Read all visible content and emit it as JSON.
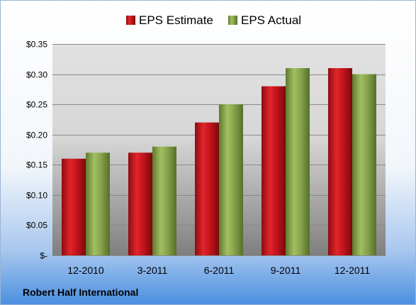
{
  "chart_data": {
    "type": "bar",
    "title": "",
    "xlabel": "",
    "ylabel": "",
    "categories": [
      "12-2010",
      "3-2011",
      "6-2011",
      "9-2011",
      "12-2011"
    ],
    "series": [
      {
        "name": "EPS Estimate",
        "values": [
          0.16,
          0.17,
          0.22,
          0.28,
          0.31
        ]
      },
      {
        "name": "EPS Actual",
        "values": [
          0.17,
          0.18,
          0.25,
          0.31,
          0.3
        ]
      }
    ],
    "ylim": [
      0,
      0.35
    ],
    "yticks": [
      0,
      0.05,
      0.1,
      0.15,
      0.2,
      0.25,
      0.3,
      0.35
    ],
    "ytick_labels": [
      "$-",
      "$0.05",
      "$0.10",
      "$0.15",
      "$0.20",
      "$0.25",
      "$0.30",
      "$0.35"
    ],
    "grid": true,
    "legend": "top-center",
    "colors": {
      "EPS Estimate": "#c8141c",
      "EPS Actual": "#8aa64c"
    }
  },
  "footer": {
    "company": "Robert Half International"
  }
}
